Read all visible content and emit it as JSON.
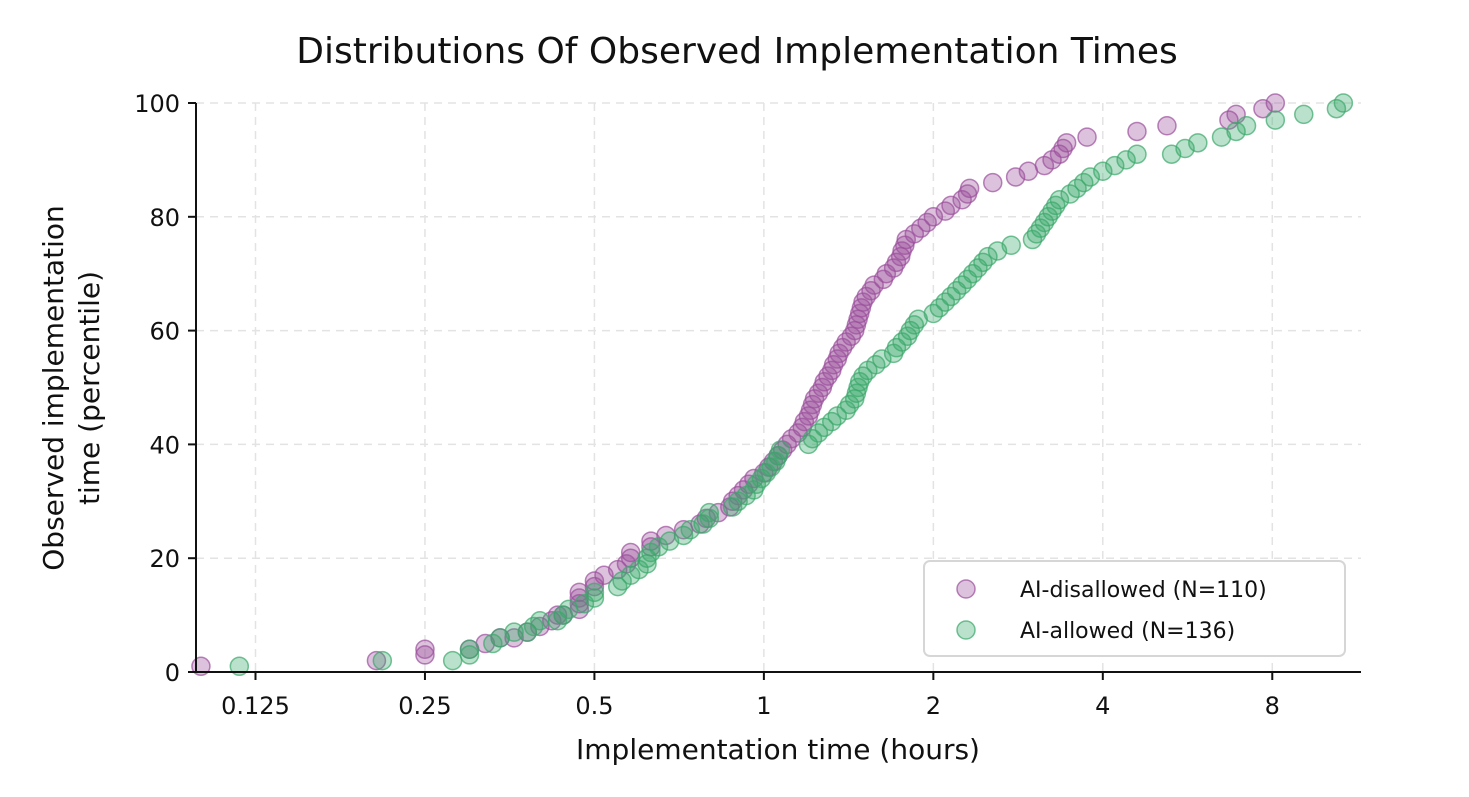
{
  "chart_data": {
    "type": "scatter",
    "title": "Distributions Of Observed Implementation Times",
    "xlabel": "Implementation time (hours)",
    "ylabel_line1": "Observed implementation",
    "ylabel_line2": "time (percentile)",
    "x_scale": "log2",
    "xlim": [
      0.098,
      11.5
    ],
    "ylim": [
      0,
      100
    ],
    "x_ticks": [
      0.125,
      0.25,
      0.5,
      1,
      2,
      4,
      8
    ],
    "x_tick_labels": [
      "0.125",
      "0.25",
      "0.5",
      "1",
      "2",
      "4",
      "8"
    ],
    "y_ticks": [
      0,
      20,
      40,
      60,
      80,
      100
    ],
    "y_tick_labels": [
      "0",
      "20",
      "40",
      "60",
      "80",
      "100"
    ],
    "grid": true,
    "legend_position": "lower-right",
    "series": [
      {
        "name": "AI-disallowed (N=110)",
        "color": "#9b4f9c",
        "points": [
          [
            0.1,
            1
          ],
          [
            0.205,
            2
          ],
          [
            0.25,
            3
          ],
          [
            0.25,
            4
          ],
          [
            0.3,
            4
          ],
          [
            0.32,
            5
          ],
          [
            0.34,
            6
          ],
          [
            0.36,
            6
          ],
          [
            0.38,
            7
          ],
          [
            0.4,
            8
          ],
          [
            0.42,
            9
          ],
          [
            0.43,
            10
          ],
          [
            0.44,
            10
          ],
          [
            0.47,
            11
          ],
          [
            0.47,
            12
          ],
          [
            0.47,
            13
          ],
          [
            0.47,
            14
          ],
          [
            0.5,
            15
          ],
          [
            0.5,
            16
          ],
          [
            0.52,
            17
          ],
          [
            0.55,
            18
          ],
          [
            0.57,
            19
          ],
          [
            0.58,
            20
          ],
          [
            0.58,
            21
          ],
          [
            0.63,
            22
          ],
          [
            0.63,
            23
          ],
          [
            0.67,
            24
          ],
          [
            0.72,
            25
          ],
          [
            0.77,
            26
          ],
          [
            0.79,
            27
          ],
          [
            0.83,
            28
          ],
          [
            0.87,
            29
          ],
          [
            0.88,
            30
          ],
          [
            0.9,
            31
          ],
          [
            0.92,
            32
          ],
          [
            0.94,
            33
          ],
          [
            0.96,
            34
          ],
          [
            1.0,
            35
          ],
          [
            1.02,
            36
          ],
          [
            1.04,
            37
          ],
          [
            1.06,
            38
          ],
          [
            1.08,
            39
          ],
          [
            1.1,
            40
          ],
          [
            1.12,
            41
          ],
          [
            1.15,
            42
          ],
          [
            1.17,
            43
          ],
          [
            1.18,
            44
          ],
          [
            1.2,
            45
          ],
          [
            1.21,
            46
          ],
          [
            1.22,
            47
          ],
          [
            1.23,
            48
          ],
          [
            1.25,
            49
          ],
          [
            1.27,
            50
          ],
          [
            1.28,
            51
          ],
          [
            1.3,
            52
          ],
          [
            1.32,
            53
          ],
          [
            1.33,
            54
          ],
          [
            1.35,
            55
          ],
          [
            1.36,
            56
          ],
          [
            1.38,
            57
          ],
          [
            1.4,
            58
          ],
          [
            1.43,
            59
          ],
          [
            1.45,
            60
          ],
          [
            1.46,
            61
          ],
          [
            1.47,
            62
          ],
          [
            1.48,
            63
          ],
          [
            1.49,
            64
          ],
          [
            1.5,
            65
          ],
          [
            1.52,
            66
          ],
          [
            1.55,
            67
          ],
          [
            1.57,
            68
          ],
          [
            1.63,
            69
          ],
          [
            1.65,
            70
          ],
          [
            1.7,
            71
          ],
          [
            1.72,
            72
          ],
          [
            1.75,
            73
          ],
          [
            1.76,
            74
          ],
          [
            1.78,
            75
          ],
          [
            1.79,
            76
          ],
          [
            1.85,
            77
          ],
          [
            1.9,
            78
          ],
          [
            1.95,
            79
          ],
          [
            2.0,
            80
          ],
          [
            2.1,
            81
          ],
          [
            2.15,
            82
          ],
          [
            2.25,
            83
          ],
          [
            2.3,
            84
          ],
          [
            2.32,
            85
          ],
          [
            2.55,
            86
          ],
          [
            2.8,
            87
          ],
          [
            2.95,
            88
          ],
          [
            3.15,
            89
          ],
          [
            3.25,
            90
          ],
          [
            3.35,
            91
          ],
          [
            3.4,
            92
          ],
          [
            3.45,
            93
          ],
          [
            3.75,
            94
          ],
          [
            4.6,
            95
          ],
          [
            5.2,
            96
          ],
          [
            6.7,
            97
          ],
          [
            6.9,
            98
          ],
          [
            7.7,
            99
          ],
          [
            8.1,
            100
          ]
        ]
      },
      {
        "name": "AI-allowed (N=136)",
        "color": "#3aa86b",
        "points": [
          [
            0.117,
            1
          ],
          [
            0.21,
            2
          ],
          [
            0.28,
            2
          ],
          [
            0.3,
            3
          ],
          [
            0.3,
            4
          ],
          [
            0.33,
            5
          ],
          [
            0.34,
            6
          ],
          [
            0.36,
            7
          ],
          [
            0.38,
            7
          ],
          [
            0.39,
            8
          ],
          [
            0.4,
            9
          ],
          [
            0.43,
            9
          ],
          [
            0.44,
            10
          ],
          [
            0.45,
            11
          ],
          [
            0.48,
            12
          ],
          [
            0.5,
            13
          ],
          [
            0.5,
            14
          ],
          [
            0.55,
            15
          ],
          [
            0.56,
            16
          ],
          [
            0.58,
            17
          ],
          [
            0.6,
            18
          ],
          [
            0.62,
            19
          ],
          [
            0.62,
            20
          ],
          [
            0.63,
            21
          ],
          [
            0.65,
            22
          ],
          [
            0.68,
            23
          ],
          [
            0.72,
            24
          ],
          [
            0.74,
            25
          ],
          [
            0.78,
            26
          ],
          [
            0.8,
            27
          ],
          [
            0.8,
            28
          ],
          [
            0.88,
            29
          ],
          [
            0.9,
            30
          ],
          [
            0.93,
            31
          ],
          [
            0.96,
            32
          ],
          [
            0.97,
            33
          ],
          [
            0.99,
            34
          ],
          [
            1.01,
            35
          ],
          [
            1.03,
            36
          ],
          [
            1.05,
            37
          ],
          [
            1.06,
            38
          ],
          [
            1.07,
            39
          ],
          [
            1.2,
            40
          ],
          [
            1.22,
            41
          ],
          [
            1.25,
            42
          ],
          [
            1.28,
            43
          ],
          [
            1.32,
            44
          ],
          [
            1.35,
            45
          ],
          [
            1.4,
            46
          ],
          [
            1.42,
            47
          ],
          [
            1.45,
            48
          ],
          [
            1.46,
            49
          ],
          [
            1.47,
            50
          ],
          [
            1.48,
            51
          ],
          [
            1.5,
            52
          ],
          [
            1.53,
            53
          ],
          [
            1.58,
            54
          ],
          [
            1.62,
            55
          ],
          [
            1.7,
            56
          ],
          [
            1.72,
            57
          ],
          [
            1.76,
            58
          ],
          [
            1.8,
            59
          ],
          [
            1.82,
            60
          ],
          [
            1.85,
            61
          ],
          [
            1.88,
            62
          ],
          [
            2.0,
            63
          ],
          [
            2.05,
            64
          ],
          [
            2.1,
            65
          ],
          [
            2.15,
            66
          ],
          [
            2.2,
            67
          ],
          [
            2.25,
            68
          ],
          [
            2.3,
            69
          ],
          [
            2.35,
            70
          ],
          [
            2.4,
            71
          ],
          [
            2.45,
            72
          ],
          [
            2.5,
            73
          ],
          [
            2.6,
            74
          ],
          [
            2.75,
            75
          ],
          [
            3.0,
            76
          ],
          [
            3.05,
            77
          ],
          [
            3.1,
            78
          ],
          [
            3.15,
            79
          ],
          [
            3.2,
            80
          ],
          [
            3.25,
            81
          ],
          [
            3.3,
            82
          ],
          [
            3.35,
            83
          ],
          [
            3.5,
            84
          ],
          [
            3.6,
            85
          ],
          [
            3.7,
            86
          ],
          [
            3.8,
            87
          ],
          [
            4.0,
            88
          ],
          [
            4.2,
            89
          ],
          [
            4.4,
            90
          ],
          [
            4.6,
            91
          ],
          [
            5.3,
            91
          ],
          [
            5.6,
            92
          ],
          [
            5.9,
            93
          ],
          [
            6.5,
            94
          ],
          [
            6.9,
            95
          ],
          [
            7.2,
            96
          ],
          [
            8.1,
            97
          ],
          [
            9.1,
            98
          ],
          [
            10.4,
            99
          ],
          [
            10.7,
            100
          ]
        ]
      }
    ]
  }
}
